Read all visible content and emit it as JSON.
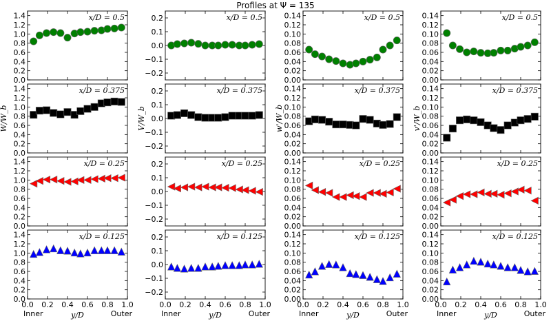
{
  "chart_data": {
    "type": "scatter",
    "title": "Profiles at Ψ = 135",
    "xlabel": "y/D",
    "xlim": [
      0,
      1
    ],
    "x_ticks": [
      "0.0",
      "0.2",
      "0.4",
      "0.6",
      "0.8",
      "1.0"
    ],
    "x_end_labels": {
      "left": "Inner",
      "right": "Outer"
    },
    "x": [
      0.06,
      0.12,
      0.19,
      0.26,
      0.33,
      0.4,
      0.47,
      0.53,
      0.6,
      0.67,
      0.74,
      0.8,
      0.87,
      0.94
    ],
    "rows": [
      {
        "annotation": "x/D = 0.5",
        "marker": "circle",
        "color": "#008000"
      },
      {
        "annotation": "x/D = 0.375",
        "marker": "square",
        "color": "#000000"
      },
      {
        "annotation": "x/D = 0.25",
        "marker": "triangle-left",
        "color": "#ff0000"
      },
      {
        "annotation": "x/D = 0.125",
        "marker": "triangle-up",
        "color": "#0000ff"
      }
    ],
    "columns": [
      {
        "ylabel": "W/W_b",
        "ylim": [
          0,
          1.5
        ],
        "y_ticks": [
          "0.0",
          "0.2",
          "0.4",
          "0.6",
          "0.8",
          "1.0",
          "1.2",
          "1.4"
        ],
        "series": [
          [
            0.84,
            0.97,
            1.02,
            1.04,
            1.02,
            0.92,
            1.01,
            1.04,
            1.05,
            1.07,
            1.08,
            1.11,
            1.12,
            1.14
          ],
          [
            0.83,
            0.92,
            0.93,
            0.87,
            0.84,
            0.89,
            0.83,
            0.91,
            0.96,
            1.0,
            1.08,
            1.1,
            1.12,
            1.11
          ],
          [
            0.92,
            0.98,
            1.01,
            1.01,
            0.98,
            0.96,
            0.97,
            1.0,
            1.0,
            1.02,
            1.03,
            1.04,
            1.04,
            1.05
          ],
          [
            0.98,
            1.02,
            1.08,
            1.1,
            1.06,
            1.05,
            1.01,
            0.99,
            1.01,
            1.06,
            1.06,
            1.06,
            1.06,
            1.03
          ]
        ]
      },
      {
        "ylabel": "V/W_b",
        "ylim": [
          -0.25,
          0.25
        ],
        "y_ticks": [
          "−0.2",
          "−0.1",
          "0.0",
          "0.1",
          "0.2"
        ],
        "series": [
          [
            0.0,
            0.01,
            0.015,
            0.02,
            0.012,
            0.0,
            0.0,
            0.0,
            0.005,
            0.005,
            0.0,
            0.0,
            0.005,
            0.01
          ],
          [
            0.02,
            0.025,
            0.038,
            0.025,
            0.01,
            0.005,
            0.005,
            0.005,
            0.01,
            0.02,
            0.02,
            0.02,
            0.02,
            0.025
          ],
          [
            0.035,
            0.022,
            0.03,
            0.035,
            0.03,
            0.035,
            0.03,
            0.03,
            0.027,
            0.025,
            0.015,
            0.01,
            0.005,
            -0.003
          ],
          [
            -0.015,
            -0.025,
            -0.03,
            -0.025,
            -0.025,
            -0.015,
            -0.015,
            -0.01,
            -0.005,
            -0.005,
            -0.005,
            0.0,
            0.0,
            0.005
          ]
        ]
      },
      {
        "ylabel": "w'/W_b",
        "ylim": [
          0,
          0.15
        ],
        "y_ticks": [
          "0.00",
          "0.02",
          "0.04",
          "0.06",
          "0.08",
          "0.10",
          "0.12",
          "0.14"
        ],
        "series": [
          [
            0.066,
            0.056,
            0.051,
            0.045,
            0.041,
            0.036,
            0.033,
            0.036,
            0.04,
            0.044,
            0.049,
            0.066,
            0.075,
            0.086
          ],
          [
            0.069,
            0.073,
            0.072,
            0.068,
            0.062,
            0.062,
            0.061,
            0.06,
            0.074,
            0.072,
            0.064,
            0.061,
            0.063,
            0.078
          ],
          [
            0.088,
            0.078,
            0.074,
            0.072,
            0.063,
            0.063,
            0.067,
            0.065,
            0.063,
            0.072,
            0.072,
            0.07,
            0.073,
            0.081
          ],
          [
            0.053,
            0.06,
            0.072,
            0.076,
            0.075,
            0.069,
            0.056,
            0.054,
            0.052,
            0.048,
            0.043,
            0.039,
            0.047,
            0.055
          ]
        ]
      },
      {
        "ylabel": "v'/W_b",
        "ylim": [
          0,
          0.15
        ],
        "y_ticks": [
          "0.00",
          "0.02",
          "0.04",
          "0.06",
          "0.08",
          "0.10",
          "0.12",
          "0.14"
        ],
        "series": [
          [
            0.102,
            0.075,
            0.067,
            0.06,
            0.062,
            0.059,
            0.058,
            0.059,
            0.064,
            0.064,
            0.068,
            0.072,
            0.075,
            0.082
          ],
          [
            0.033,
            0.053,
            0.071,
            0.073,
            0.071,
            0.067,
            0.06,
            0.054,
            0.05,
            0.06,
            0.066,
            0.071,
            0.074,
            0.079
          ],
          [
            0.051,
            0.057,
            0.065,
            0.069,
            0.069,
            0.073,
            0.07,
            0.07,
            0.068,
            0.071,
            0.075,
            0.079,
            0.077,
            0.055
          ],
          [
            0.038,
            0.064,
            0.069,
            0.075,
            0.083,
            0.081,
            0.077,
            0.075,
            0.072,
            0.069,
            0.069,
            0.063,
            0.06,
            0.061
          ]
        ]
      }
    ]
  }
}
